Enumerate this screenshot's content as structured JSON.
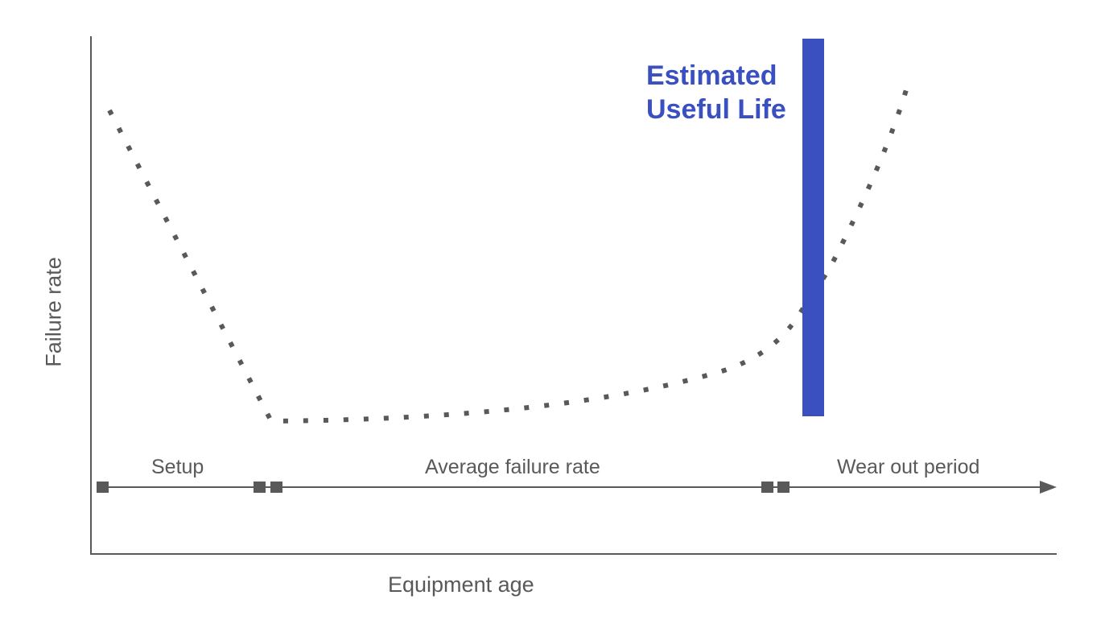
{
  "diagram": {
    "y_axis_label": "Failure rate",
    "x_axis_label": "Equipment age",
    "phases": [
      {
        "label": "Setup"
      },
      {
        "label": "Average failure rate"
      },
      {
        "label": "Wear out period"
      }
    ],
    "estimated_useful_life_label": "Estimated\nUseful Life",
    "colors": {
      "axis": "#595959",
      "curve": "#595959",
      "life_bar": "#3a4fc0",
      "text": "#595959"
    }
  }
}
